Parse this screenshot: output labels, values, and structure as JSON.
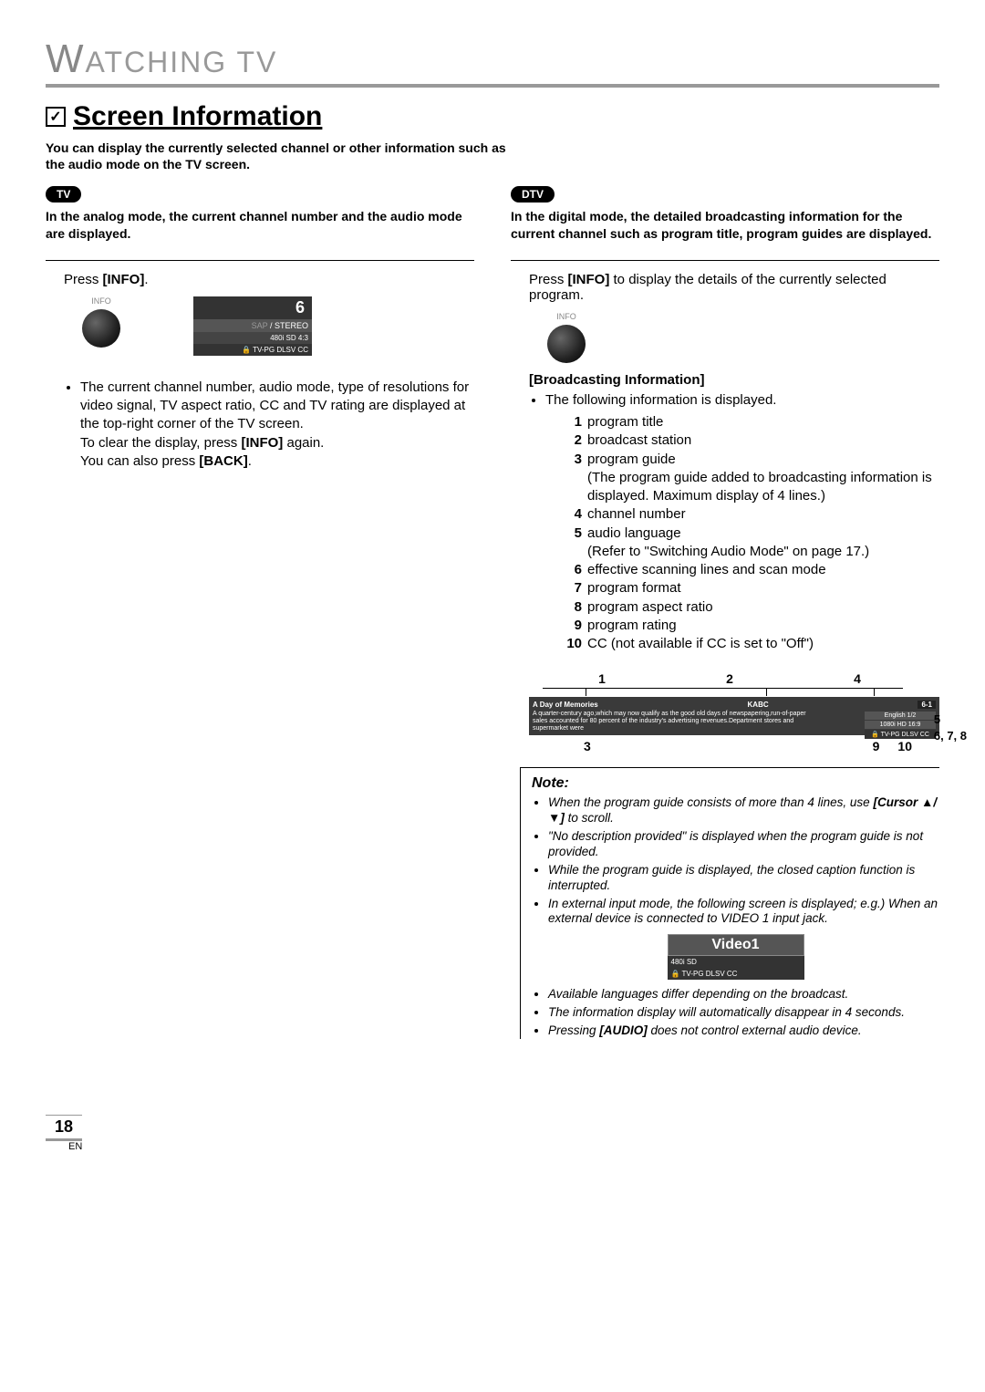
{
  "header": {
    "section": "ATCHING  TV",
    "section_prefix": "W",
    "title": "Screen Information",
    "intro": "You can display the currently selected channel or other information such as the audio mode on the TV screen."
  },
  "tv": {
    "badge": "TV",
    "desc": "In the analog mode, the current channel number and the audio mode are displayed.",
    "step": "Press [INFO].",
    "step_pre": "Press ",
    "step_bold": "[INFO]",
    "step_post": ".",
    "info_label": "INFO",
    "display": {
      "channel": "6",
      "audio_sap": "SAP",
      "audio_stereo": " / STEREO",
      "res": "480i  SD  4:3",
      "rating": "🔒 TV-PG DLSV CC"
    },
    "bullet1": "The current channel number, audio mode, type of resolutions for video signal, TV aspect ratio, CC and TV rating are displayed at the top-right corner of the TV screen.",
    "bullet1b": "To clear the display, press [INFO] again.",
    "bullet1c": "You can also press [BACK]."
  },
  "dtv": {
    "badge": "DTV",
    "desc": "In the digital mode, the detailed broadcasting information for the current channel such as program title, program guides are displayed.",
    "step_pre": "Press ",
    "step_bold": "[INFO]",
    "step_post": " to display the details of the currently selected program.",
    "info_label": "INFO",
    "sub_heading": "[Broadcasting Information]",
    "intro_bullet": "The following information is displayed.",
    "items": [
      {
        "n": "1",
        "t": "program title"
      },
      {
        "n": "2",
        "t": "broadcast station"
      },
      {
        "n": "3",
        "t": "program guide\n(The program guide added to broadcasting information is displayed. Maximum display of 4 lines.)"
      },
      {
        "n": "4",
        "t": "channel number"
      },
      {
        "n": "5",
        "t": "audio language\n(Refer to \"Switching Audio Mode\" on page 17.)"
      },
      {
        "n": "6",
        "t": "effective scanning lines and scan mode"
      },
      {
        "n": "7",
        "t": "program format"
      },
      {
        "n": "8",
        "t": "program aspect ratio"
      },
      {
        "n": "9",
        "t": "program rating"
      },
      {
        "n": "10",
        "t": "CC (not available if CC is set to \"Off\")"
      }
    ],
    "diagram": {
      "top_labels": [
        "1",
        "2",
        "4"
      ],
      "prog_title": "A Day of Memories",
      "station": "KABC",
      "channel": "6-1",
      "desc": "A quarter-century ago,which may now qualify as the good old days of newspapering,run-of-paper sales accounted for 80 percent of the industry's advertising revenues.Department stores and supermarket were",
      "lang": "English 1/2",
      "res": "1080i  HD  16:9",
      "rating": "🔒 TV-PG DLSV CC",
      "right_labels": [
        "5",
        "6, 7, 8"
      ],
      "bottom_labels": {
        "l3": "3",
        "l9": "9",
        "l10": "10"
      }
    },
    "note": {
      "title": "Note:",
      "items": [
        "When the program guide consists of more than 4 lines, use [Cursor ▲/▼] to scroll.",
        "\"No description provided\" is displayed when the program guide is not provided.",
        "While the program guide is displayed, the closed caption function is interrupted.",
        "In external input mode, the following screen is displayed; e.g.) When an external device is connected to VIDEO 1 input jack."
      ],
      "video": {
        "title": "Video1",
        "res": "480i  SD",
        "rating": "🔒 TV-PG DLSV CC"
      },
      "items2": [
        "Available languages differ depending on the broadcast.",
        "The information display will automatically disappear in 4 seconds.",
        "Pressing [AUDIO] does not control external audio device."
      ]
    }
  },
  "footer": {
    "page": "18",
    "lang": "EN"
  }
}
